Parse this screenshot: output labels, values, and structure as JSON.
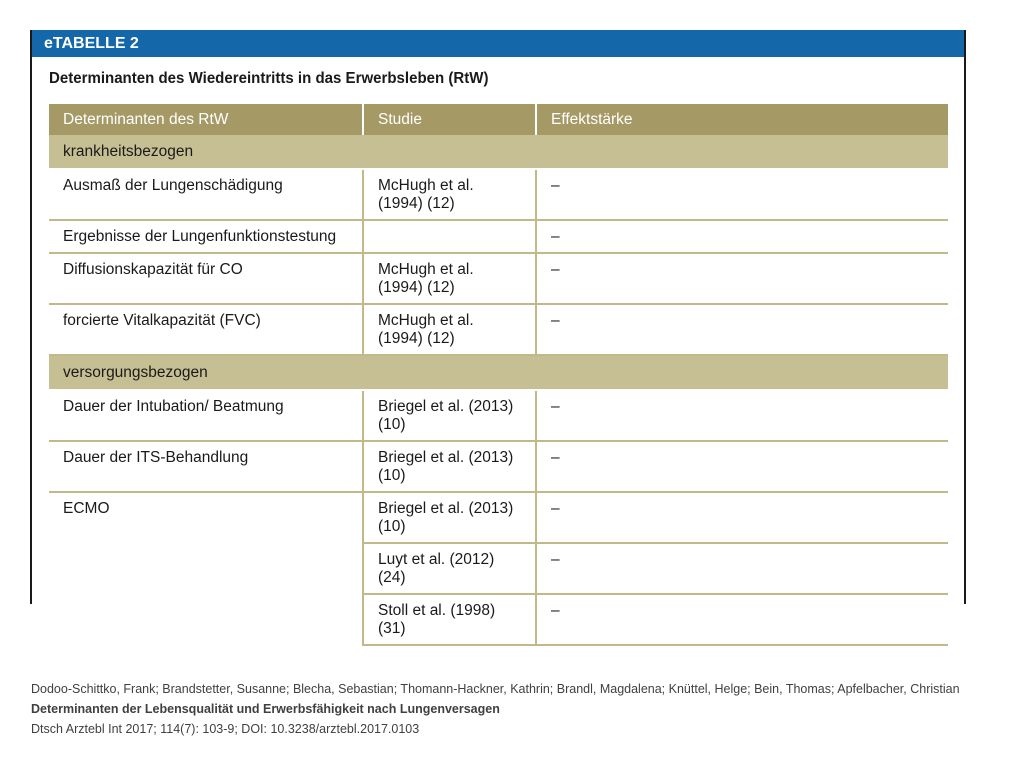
{
  "table_label": "eTABELLE 2",
  "table_title": "Determinanten des Wiedereintritts in das Erwerbsleben (RtW)",
  "columns": [
    "Determinanten des RtW",
    "Studie",
    "Effektstärke"
  ],
  "sections": [
    {
      "name": "krankheitsbezogen",
      "rows": [
        {
          "det": "Ausmaß der Lungenschädigung",
          "studie": "McHugh et al. (1994) (12)",
          "effekt": "–"
        },
        {
          "det": "Ergebnisse der Lungenfunktionstestung",
          "studie": "",
          "effekt": "–"
        },
        {
          "det": "Diffusionskapazität für CO",
          "studie": "McHugh et al. (1994) (12)",
          "effekt": "–"
        },
        {
          "det": "forcierte Vitalkapazität (FVC)",
          "studie": "McHugh et al. (1994) (12)",
          "effekt": "–"
        }
      ]
    },
    {
      "name": "versorgungsbezogen",
      "rows": [
        {
          "det": "Dauer der Intubation/ Beatmung",
          "studie": "Briegel et al. (2013) (10)",
          "effekt": "–"
        },
        {
          "det": "Dauer der ITS-Behandlung",
          "studie": "Briegel et al. (2013) (10)",
          "effekt": "–"
        },
        {
          "det": "ECMO",
          "studie": "Briegel et al. (2013) (10)",
          "effekt": "–"
        },
        {
          "det": "",
          "studie": "Luyt et al. (2012) (24)",
          "effekt": "–"
        },
        {
          "det": "",
          "studie": "Stoll et al. (1998) (31)",
          "effekt": "–"
        }
      ]
    }
  ],
  "citation": {
    "authors": "Dodoo-Schittko, Frank; Brandstetter, Susanne; Blecha, Sebastian; Thomann-Hackner, Kathrin; Brandl, Magdalena; Knüttel, Helge; Bein, Thomas; Apfelbacher, Christian",
    "title": "Determinanten der Lebensqualität und Erwerbsfähigkeit nach Lungenversagen",
    "source": "Dtsch Arztebl Int 2017; 114(7): 103-9; DOI: 10.3238/arztebl.2017.0103"
  }
}
